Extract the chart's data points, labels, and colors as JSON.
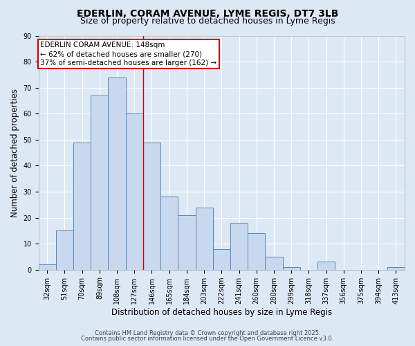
{
  "title1": "EDERLIN, CORAM AVENUE, LYME REGIS, DT7 3LB",
  "title2": "Size of property relative to detached houses in Lyme Regis",
  "xlabel": "Distribution of detached houses by size in Lyme Regis",
  "ylabel": "Number of detached properties",
  "categories": [
    "32sqm",
    "51sqm",
    "70sqm",
    "89sqm",
    "108sqm",
    "127sqm",
    "146sqm",
    "165sqm",
    "184sqm",
    "203sqm",
    "222sqm",
    "241sqm",
    "260sqm",
    "280sqm",
    "299sqm",
    "318sqm",
    "337sqm",
    "356sqm",
    "375sqm",
    "394sqm",
    "413sqm"
  ],
  "values": [
    2,
    15,
    49,
    67,
    74,
    60,
    49,
    28,
    21,
    24,
    8,
    18,
    14,
    5,
    1,
    0,
    3,
    0,
    0,
    0,
    1
  ],
  "bar_color": "#c8d8ee",
  "bar_edge_color": "#5588bb",
  "background_color": "#dde8f5",
  "grid_color": "#ffffff",
  "annotation_text": "EDERLIN CORAM AVENUE: 148sqm\n← 62% of detached houses are smaller (270)\n37% of semi-detached houses are larger (162) →",
  "annotation_box_color": "white",
  "annotation_box_edge_color": "#cc0000",
  "vline_color": "#cc0000",
  "vline_x": 6,
  "ylim": [
    0,
    90
  ],
  "yticks": [
    0,
    10,
    20,
    30,
    40,
    50,
    60,
    70,
    80,
    90
  ],
  "footer1": "Contains HM Land Registry data © Crown copyright and database right 2025.",
  "footer2": "Contains public sector information licensed under the Open Government Licence v3.0.",
  "title1_fontsize": 10,
  "title2_fontsize": 9,
  "tick_fontsize": 7,
  "axis_label_fontsize": 8.5,
  "annotation_fontsize": 7.5,
  "footer_fontsize": 6
}
